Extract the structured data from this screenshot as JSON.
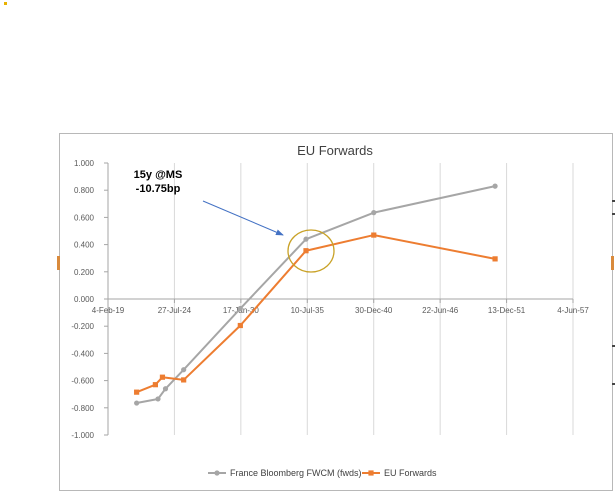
{
  "colors": {
    "grey": "#a6a6a6",
    "orange": "#ed7d31",
    "arrow": "#4472c4",
    "circle": "#c9a227",
    "grid": "#d9d9d9"
  },
  "chart_data": {
    "type": "line",
    "title": "EU Forwards",
    "xlabel": "",
    "ylabel": "",
    "x_ticks": [
      "4-Feb-19",
      "27-Jul-24",
      "17-Jan-30",
      "10-Jul-35",
      "30-Dec-40",
      "22-Jun-46",
      "13-Dec-51",
      "4-Jun-57"
    ],
    "y_ticks": [
      "1.000",
      "0.800",
      "0.600",
      "0.400",
      "0.200",
      "0.000",
      "-0.200",
      "-0.400",
      "-0.600",
      "-0.800",
      "-1.000"
    ],
    "ylim": [
      -1.0,
      1.0
    ],
    "grid": "vertical",
    "legend": "bottom",
    "series": [
      {
        "name": "France Bloomberg FWCM (fwds)",
        "color": "#a6a6a6",
        "marker": "circle",
        "x": [
          "2021-06-15",
          "2023-03-20",
          "2023-11-01",
          "2025-05-01",
          "2030-01-01",
          "2035-06-01",
          "2041-01-01",
          "2051-01-01"
        ],
        "y": [
          -0.765,
          -0.735,
          -0.66,
          -0.52,
          -0.07,
          0.44,
          0.635,
          0.83
        ]
      },
      {
        "name": "EU Forwards",
        "color": "#ed7d31",
        "marker": "square",
        "x": [
          "2021-06-15",
          "2023-01-01",
          "2023-08-01",
          "2025-05-01",
          "2030-01-01",
          "2035-06-01",
          "2041-01-01",
          "2051-01-01"
        ],
        "y": [
          -0.685,
          -0.63,
          -0.575,
          -0.595,
          -0.195,
          0.355,
          0.47,
          0.295
        ]
      }
    ],
    "annotations": [
      {
        "text_lines": [
          "15y @MS",
          "-10.75bp"
        ]
      }
    ]
  }
}
